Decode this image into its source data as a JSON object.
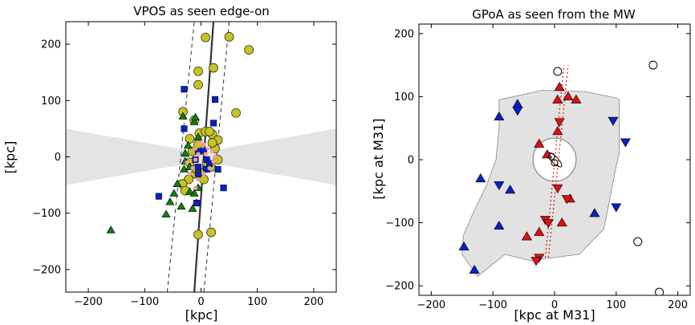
{
  "chart_data": [
    {
      "type": "scatter",
      "title": "VPOS as seen edge-on",
      "xlabel": "[kpc]",
      "ylabel": "[kpc]",
      "xlim": [
        -240,
        240
      ],
      "ylim": [
        -240,
        240
      ],
      "xticks": [
        -200,
        -100,
        0,
        100,
        200
      ],
      "yticks": [
        -200,
        -100,
        0,
        100,
        200
      ],
      "xtick_labels": [
        "−200",
        "−100",
        "0",
        "100",
        "200"
      ],
      "ytick_labels": [
        "−200",
        "−100",
        "0",
        "100",
        "200"
      ],
      "grid": false,
      "colors": {
        "yellow": "#c8c41c",
        "green": "#0e7f0e",
        "blue": "#0a20c8",
        "pink": "#f0a0a0",
        "shade": "#e4e4e4"
      },
      "zone_of_avoidance": {
        "half_width_at_edge": 50,
        "half_width_at_center": 8
      },
      "plane_line": [
        [
          -12,
          -240
        ],
        [
          22,
          240
        ]
      ],
      "plane_dashed_left": [
        [
          -60,
          -240
        ],
        [
          -12,
          240
        ]
      ],
      "plane_dashed_right": [
        [
          5,
          -240
        ],
        [
          50,
          240
        ]
      ],
      "series": [
        {
          "marker": "circle",
          "color": "#c8c41c",
          "points": [
            [
              8,
              212
            ],
            [
              50,
              213
            ],
            [
              85,
              190
            ],
            [
              -5,
              152
            ],
            [
              -5,
              128
            ],
            [
              22,
              158
            ],
            [
              -32,
              80
            ],
            [
              -12,
              65
            ],
            [
              -3,
              42
            ],
            [
              8,
              45
            ],
            [
              20,
              40
            ],
            [
              -20,
              32
            ],
            [
              62,
              78
            ],
            [
              -2,
              -28
            ],
            [
              -10,
              -30
            ],
            [
              -22,
              -40
            ],
            [
              -33,
              -48
            ],
            [
              -28,
              -60
            ],
            [
              -5,
              -138
            ],
            [
              18,
              -134
            ],
            [
              -8,
              -22
            ],
            [
              10,
              -10
            ],
            [
              25,
              15
            ],
            [
              30,
              30
            ],
            [
              20,
              25
            ],
            [
              5,
              -40
            ],
            [
              -5,
              22
            ],
            [
              18,
              -18
            ],
            [
              30,
              -5
            ],
            [
              -15,
              10
            ],
            [
              15,
              45
            ],
            [
              -20,
              -10
            ]
          ]
        },
        {
          "marker": "triangle",
          "color": "#0e7f0e",
          "points": [
            [
              -32,
              72
            ],
            [
              -12,
              62
            ],
            [
              -10,
              70
            ],
            [
              -23,
              20
            ],
            [
              -28,
              6
            ],
            [
              -30,
              -22
            ],
            [
              -20,
              -18
            ],
            [
              -42,
              -48
            ],
            [
              -48,
              -65
            ],
            [
              -35,
              -88
            ],
            [
              -20,
              -62
            ],
            [
              -12,
              -65
            ],
            [
              -8,
              -82
            ],
            [
              -15,
              -92
            ],
            [
              -55,
              -80
            ],
            [
              -62,
              -102
            ],
            [
              -160,
              -130
            ],
            [
              -28,
              -8
            ],
            [
              -5,
              35
            ],
            [
              -5,
              -55
            ]
          ]
        },
        {
          "marker": "square",
          "color": "#0a20c8",
          "points": [
            [
              -30,
              120
            ],
            [
              25,
              102
            ],
            [
              -30,
              50
            ],
            [
              -5,
              10
            ],
            [
              5,
              10
            ],
            [
              -10,
              -5
            ],
            [
              10,
              -5
            ],
            [
              -5,
              -18
            ],
            [
              10,
              -22
            ],
            [
              30,
              -22
            ],
            [
              -75,
              -70
            ],
            [
              40,
              -55
            ],
            [
              -8,
              -82
            ],
            [
              -5,
              -30
            ],
            [
              22,
              60
            ],
            [
              15,
              -12
            ]
          ]
        },
        {
          "name": "",
          "marker": "trail",
          "color": "#f0a0a0",
          "points": [
            [
              -10,
              15
            ],
            [
              0,
              25
            ],
            [
              5,
              22
            ],
            [
              12,
              15
            ],
            [
              20,
              10
            ],
            [
              25,
              0
            ],
            [
              22,
              -8
            ],
            [
              15,
              -20
            ],
            [
              5,
              -30
            ],
            [
              -5,
              -40
            ],
            [
              -10,
              -55
            ],
            [
              -20,
              -30
            ],
            [
              -10,
              -5
            ],
            [
              -5,
              5
            ],
            [
              8,
              5
            ],
            [
              -15,
              -20
            ],
            [
              -25,
              -10
            ]
          ]
        }
      ]
    },
    {
      "type": "scatter",
      "title": "GPoA as seen from the MW",
      "xlabel": "[kpc at M31]",
      "ylabel": "[kpc at M31]",
      "xlim": [
        -220,
        220
      ],
      "ylim": [
        -215,
        215
      ],
      "xticks": [
        -200,
        -100,
        0,
        100,
        200
      ],
      "yticks": [
        -200,
        -100,
        0,
        100,
        200
      ],
      "xtick_labels": [
        "−200",
        "−100",
        "0",
        "100",
        "200"
      ],
      "ytick_labels": [
        "−200",
        "−100",
        "0",
        "100",
        "200"
      ],
      "grid": false,
      "colors": {
        "red": "#dd1111",
        "blue": "#0a20c8",
        "footprint": "#e2e2e2",
        "footprint_edge": "#888888"
      },
      "footprint_polygon": [
        [
          -90,
          95
        ],
        [
          -20,
          110
        ],
        [
          50,
          108
        ],
        [
          100,
          98
        ],
        [
          105,
          95
        ],
        [
          105,
          10
        ],
        [
          100,
          -10
        ],
        [
          90,
          -60
        ],
        [
          80,
          -110
        ],
        [
          40,
          -150
        ],
        [
          -40,
          -160
        ],
        [
          -80,
          -150
        ],
        [
          -125,
          -185
        ],
        [
          -150,
          -150
        ],
        [
          -150,
          -150
        ],
        [
          -148,
          -120
        ],
        [
          -130,
          -80
        ],
        [
          -110,
          -40
        ],
        [
          -95,
          0
        ],
        [
          -90,
          50
        ]
      ],
      "m31_circle": {
        "cx": 0,
        "cy": 0,
        "r": 35
      },
      "plane_dotted": [
        [
          [
            -15,
            -155
          ],
          [
            15,
            150
          ]
        ],
        [
          [
            -10,
            -155
          ],
          [
            22,
            150
          ]
        ]
      ],
      "series": [
        {
          "marker": "triangle-up",
          "color": "#dd1111",
          "points": [
            [
              8,
              115
            ],
            [
              22,
              100
            ],
            [
              35,
              95
            ],
            [
              5,
              95
            ],
            [
              -25,
              25
            ],
            [
              -12,
              8
            ],
            [
              5,
              45
            ],
            [
              -25,
              -115
            ],
            [
              -45,
              -122
            ],
            [
              25,
              -62
            ],
            [
              12,
              -100
            ]
          ]
        },
        {
          "marker": "triangle-down",
          "color": "#dd1111",
          "points": [
            [
              8,
              60
            ],
            [
              5,
              -45
            ],
            [
              -15,
              -95
            ],
            [
              -10,
              -100
            ],
            [
              -25,
              -155
            ],
            [
              20,
              -62
            ],
            [
              -30,
              -160
            ]
          ]
        },
        {
          "marker": "triangle-up",
          "color": "#0a20c8",
          "points": [
            [
              -60,
              88
            ],
            [
              -90,
              68
            ],
            [
              -120,
              -30
            ],
            [
              -90,
              -105
            ],
            [
              -147,
              -138
            ],
            [
              -130,
              -175
            ],
            [
              65,
              -85
            ],
            [
              -72,
              -48
            ]
          ]
        },
        {
          "marker": "triangle-down",
          "color": "#0a20c8",
          "points": [
            [
              -90,
              -40
            ],
            [
              -60,
              78
            ],
            [
              95,
              62
            ],
            [
              115,
              28
            ],
            [
              100,
              -75
            ]
          ]
        },
        {
          "marker": "open-circle",
          "color": "#000000",
          "points": [
            [
              5,
              140
            ],
            [
              160,
              150
            ],
            [
              135,
              -130
            ],
            [
              170,
              -210
            ],
            [
              -5,
              5
            ],
            [
              0,
              -5
            ]
          ]
        }
      ]
    }
  ]
}
